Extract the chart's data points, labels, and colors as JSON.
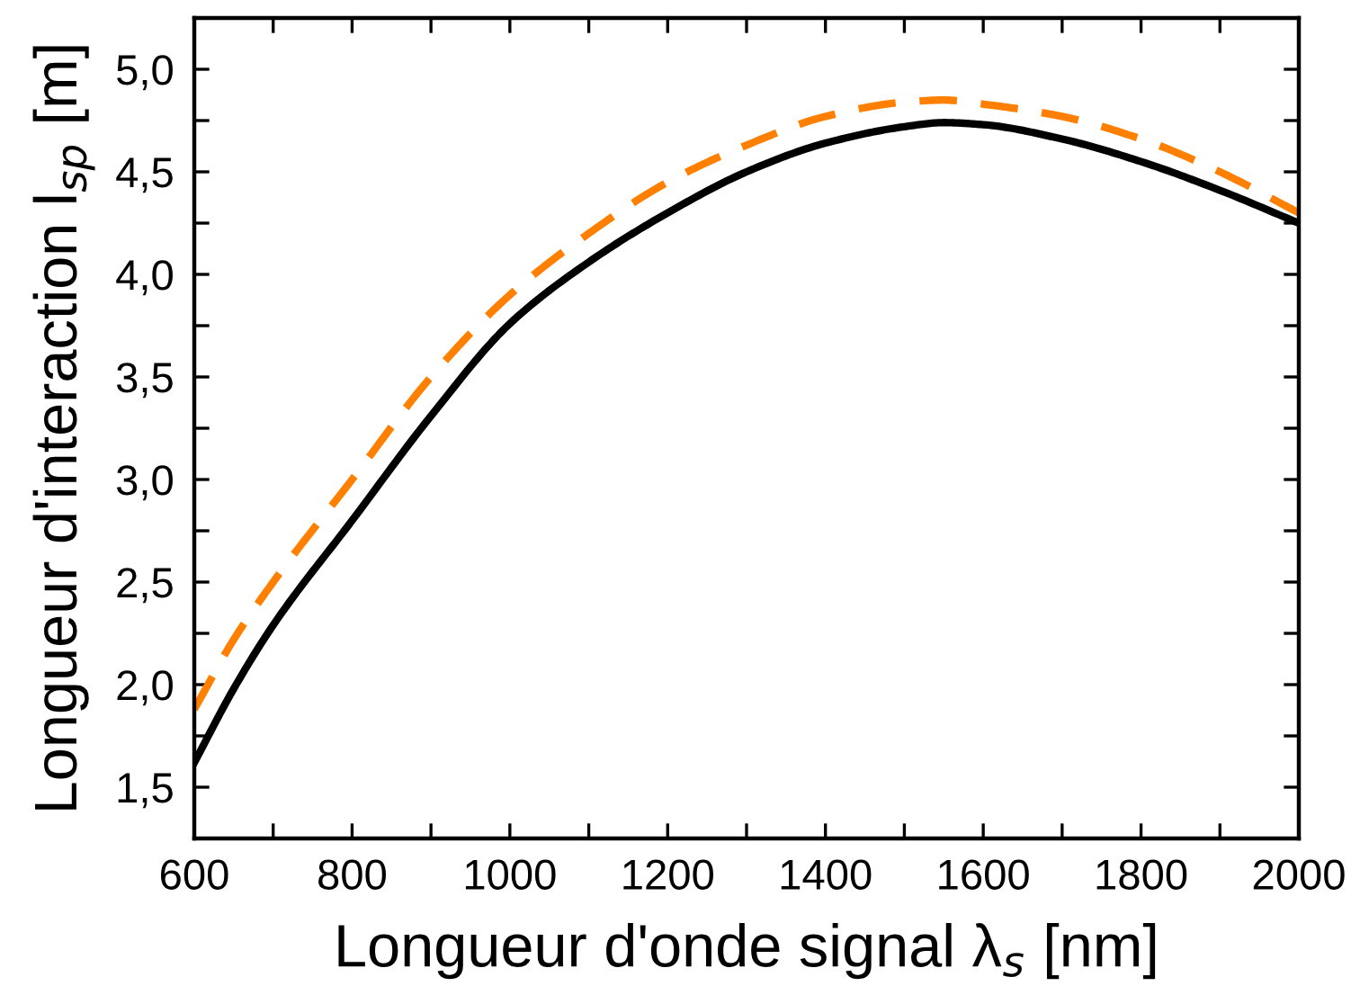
{
  "chart_data": {
    "type": "line",
    "xlabel": "Longueur d'onde signal λ$_{s}$ [nm]",
    "ylabel": "Longueur d'interaction l$_{sp}$ [m]",
    "xlim": [
      600,
      2000
    ],
    "ylim": [
      1.25,
      5.25
    ],
    "xticks": [
      600,
      {
        "value": 700,
        "label": null
      },
      800,
      {
        "value": 900,
        "label": null
      },
      1000,
      {
        "value": 1100,
        "label": null
      },
      1200,
      {
        "value": 1300,
        "label": null
      },
      1400,
      {
        "value": 1500,
        "label": null
      },
      1600,
      {
        "value": 1700,
        "label": null
      },
      1800,
      {
        "value": 1900,
        "label": null
      },
      2000
    ],
    "yticks": [
      {
        "value": 1.5,
        "label": "1,5"
      },
      {
        "value": 1.75,
        "label": null
      },
      {
        "value": 2.0,
        "label": "2,0"
      },
      {
        "value": 2.25,
        "label": null
      },
      {
        "value": 2.5,
        "label": "2,5"
      },
      {
        "value": 2.75,
        "label": null
      },
      {
        "value": 3.0,
        "label": "3,0"
      },
      {
        "value": 3.25,
        "label": null
      },
      {
        "value": 3.5,
        "label": "3,5"
      },
      {
        "value": 3.75,
        "label": null
      },
      {
        "value": 4.0,
        "label": "4,0"
      },
      {
        "value": 4.25,
        "label": null
      },
      {
        "value": 4.5,
        "label": "4,5"
      },
      {
        "value": 4.75,
        "label": null
      },
      {
        "value": 5.0,
        "label": "5,0"
      }
    ],
    "grid": false,
    "legend": false,
    "series": [
      {
        "color": "#000000",
        "line_style": "solid",
        "x": [
          600,
          650,
          700,
          800,
          900,
          1000,
          1100,
          1200,
          1300,
          1400,
          1500,
          1550,
          1600,
          1700,
          1800,
          1900,
          2000
        ],
        "values": [
          1.62,
          1.98,
          2.29,
          2.8,
          3.31,
          3.76,
          4.06,
          4.3,
          4.5,
          4.64,
          4.72,
          4.74,
          4.73,
          4.66,
          4.55,
          4.41,
          4.25
        ]
      },
      {
        "color": "#ff8000",
        "line_style": "dashed",
        "x": [
          600,
          650,
          700,
          800,
          900,
          1000,
          1100,
          1200,
          1300,
          1400,
          1500,
          1550,
          1600,
          1700,
          1800,
          1900,
          2000
        ],
        "values": [
          1.88,
          2.22,
          2.5,
          3.0,
          3.5,
          3.9,
          4.2,
          4.45,
          4.63,
          4.77,
          4.84,
          4.85,
          4.83,
          4.77,
          4.66,
          4.5,
          4.3
        ]
      }
    ]
  }
}
